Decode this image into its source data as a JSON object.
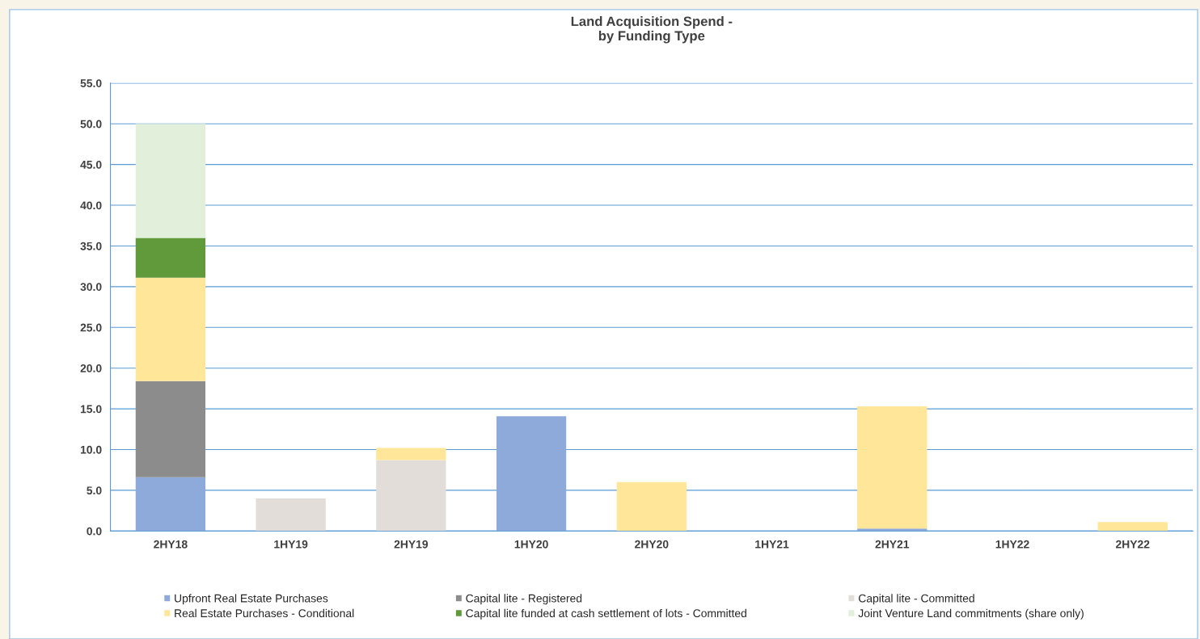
{
  "chart_data": {
    "type": "bar",
    "title": "Land Acquisition Spend -\nby Funding Type",
    "stacked": true,
    "categories": [
      "2HY18",
      "1HY19",
      "2HY19",
      "1HY20",
      "2HY20",
      "1HY21",
      "2HY21",
      "1HY22",
      "2HY22"
    ],
    "series": [
      {
        "name": "Upfront Real Estate Purchases",
        "color": "#8eaadb",
        "values": [
          6.6,
          null,
          null,
          14.1,
          null,
          null,
          0.3,
          null,
          null
        ]
      },
      {
        "name": "Capital lite - Registered",
        "color": "#8c8c8c",
        "values": [
          11.8,
          null,
          null,
          null,
          null,
          null,
          null,
          null,
          null
        ]
      },
      {
        "name": "Capital lite - Committed",
        "color": "#e2ddd8",
        "values": [
          null,
          4.0,
          8.7,
          null,
          null,
          null,
          null,
          null,
          null
        ]
      },
      {
        "name": "Real Estate Purchases - Conditional",
        "color": "#ffe699",
        "values": [
          12.7,
          null,
          1.5,
          null,
          6.0,
          null,
          15.0,
          null,
          1.1
        ]
      },
      {
        "name": "Capital lite funded at cash settlement of lots - Committed",
        "color": "#619a3b",
        "values": [
          4.9,
          null,
          null,
          null,
          null,
          null,
          null,
          null,
          null
        ]
      },
      {
        "name": "Joint Venture Land commitments (share only)",
        "color": "#e2efda",
        "values": [
          14.0,
          null,
          null,
          null,
          null,
          null,
          null,
          null,
          null
        ]
      }
    ],
    "ylim": [
      0,
      55
    ],
    "yticks": [
      {
        "value": 0,
        "label": "0.0"
      },
      {
        "value": 5,
        "label": "5.0"
      },
      {
        "value": 10,
        "label": "10.0"
      },
      {
        "value": 15,
        "label": "15.0"
      },
      {
        "value": 20,
        "label": "20.0"
      },
      {
        "value": 25,
        "label": "25.0"
      },
      {
        "value": 30,
        "label": "30.0"
      },
      {
        "value": 35,
        "label": "35.0"
      },
      {
        "value": 40,
        "label": "40.0"
      },
      {
        "value": 45,
        "label": "45.0"
      },
      {
        "value": 50,
        "label": "50.0"
      },
      {
        "value": 55,
        "label": "55.0"
      }
    ],
    "grid": "y",
    "legend": "bottom"
  }
}
